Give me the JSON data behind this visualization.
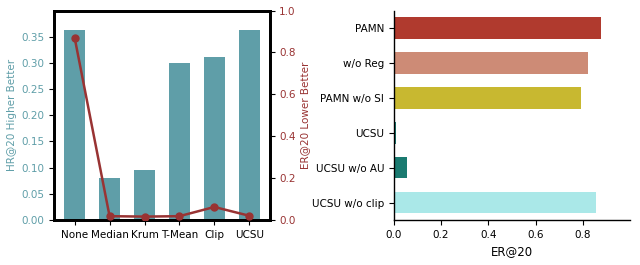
{
  "left": {
    "categories": [
      "None",
      "Median",
      "Krum",
      "T-Mean",
      "Clip",
      "UCSU"
    ],
    "hr20": [
      0.362,
      0.08,
      0.095,
      0.3,
      0.312,
      0.362
    ],
    "er20": [
      0.87,
      0.018,
      0.016,
      0.018,
      0.062,
      0.02
    ],
    "bar_color": "#5f9ea8",
    "line_color": "#993333",
    "left_ylabel": "HR@20 Higher Better",
    "right_ylabel": "ER@20 Lower Better",
    "left_ylim": [
      0,
      0.4
    ],
    "right_ylim": [
      0,
      1.0
    ],
    "left_yticks": [
      0.0,
      0.05,
      0.1,
      0.15,
      0.2,
      0.25,
      0.3,
      0.35
    ],
    "right_yticks": [
      0.0,
      0.2,
      0.4,
      0.6,
      0.8,
      1.0
    ]
  },
  "right": {
    "categories": [
      "PAMN",
      "w/o Reg",
      "PAMN w/o SI",
      "UCSU",
      "UCSU w/o AU",
      "UCSU w/o clip"
    ],
    "values": [
      0.875,
      0.82,
      0.79,
      0.008,
      0.055,
      0.855
    ],
    "colors": [
      "#b03a2e",
      "#cd8b76",
      "#c8b830",
      "#1a7a70",
      "#1a7a70",
      "#aae8e8"
    ],
    "xlabel": "ER@20",
    "xlim": [
      0,
      1.0
    ],
    "xticks": [
      0.0,
      0.2,
      0.4,
      0.6,
      0.8
    ]
  }
}
